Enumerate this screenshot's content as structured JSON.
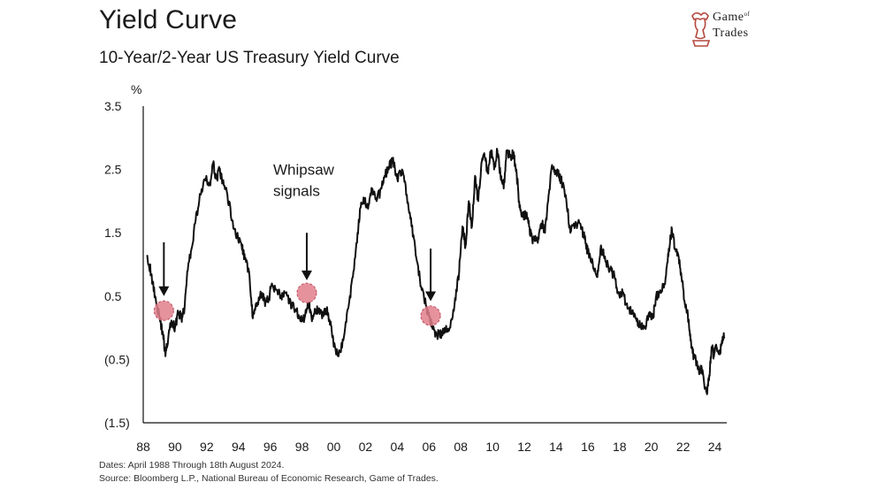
{
  "header": {
    "title": "Yield Curve",
    "subtitle": "10-Year/2-Year US Treasury Yield Curve"
  },
  "logo": {
    "name": "bull-knight-logo-icon",
    "line1": "Game",
    "line1_small": "of",
    "line2": "Trades",
    "color": "#b5483f"
  },
  "footer": {
    "dates": "Dates: April 1988 Through 18th August 2024.",
    "source": "Source: Bloomberg L.P., National Bureau of Economic Research, Game of Trades."
  },
  "chart_data": {
    "type": "line",
    "title": "10-Year/2-Year US Treasury Yield Curve",
    "ylabel": "%",
    "xlabel": "",
    "ylim": [
      -1.5,
      3.5
    ],
    "xlim": [
      1988.0,
      2024.75
    ],
    "yticks": [
      {
        "value": 3.5,
        "label": "3.5"
      },
      {
        "value": 2.5,
        "label": "2.5"
      },
      {
        "value": 1.5,
        "label": "1.5"
      },
      {
        "value": 0.5,
        "label": "0.5"
      },
      {
        "value": -0.5,
        "label": "(0.5)"
      },
      {
        "value": -1.5,
        "label": "(1.5)"
      }
    ],
    "xticks": [
      {
        "value": 1988,
        "label": "88"
      },
      {
        "value": 1990,
        "label": "90"
      },
      {
        "value": 1992,
        "label": "92"
      },
      {
        "value": 1994,
        "label": "94"
      },
      {
        "value": 1996,
        "label": "96"
      },
      {
        "value": 1998,
        "label": "98"
      },
      {
        "value": 2000,
        "label": "00"
      },
      {
        "value": 2002,
        "label": "02"
      },
      {
        "value": 2004,
        "label": "04"
      },
      {
        "value": 2006,
        "label": "06"
      },
      {
        "value": 2008,
        "label": "08"
      },
      {
        "value": 2010,
        "label": "10"
      },
      {
        "value": 2012,
        "label": "12"
      },
      {
        "value": 2014,
        "label": "14"
      },
      {
        "value": 2016,
        "label": "16"
      },
      {
        "value": 2018,
        "label": "18"
      },
      {
        "value": 2020,
        "label": "20"
      },
      {
        "value": 2022,
        "label": "22"
      },
      {
        "value": 2024,
        "label": "24"
      }
    ],
    "grid": false,
    "line_color": "#111111",
    "series": [
      {
        "values": [
          [
            1988.25,
            1.15
          ],
          [
            1988.5,
            0.85
          ],
          [
            1988.75,
            0.5
          ],
          [
            1989.0,
            0.2
          ],
          [
            1989.25,
            -0.1
          ],
          [
            1989.4,
            -0.45
          ],
          [
            1989.6,
            -0.1
          ],
          [
            1989.8,
            0.1
          ],
          [
            1990.0,
            0.0
          ],
          [
            1990.2,
            0.25
          ],
          [
            1990.4,
            0.15
          ],
          [
            1990.6,
            0.3
          ],
          [
            1990.8,
            0.9
          ],
          [
            1991.0,
            1.2
          ],
          [
            1991.3,
            1.7
          ],
          [
            1991.6,
            2.1
          ],
          [
            1991.9,
            2.35
          ],
          [
            1992.2,
            2.25
          ],
          [
            1992.4,
            2.58
          ],
          [
            1992.6,
            2.35
          ],
          [
            1992.8,
            2.48
          ],
          [
            1993.0,
            2.3
          ],
          [
            1993.3,
            2.1
          ],
          [
            1993.6,
            1.7
          ],
          [
            1993.9,
            1.45
          ],
          [
            1994.2,
            1.3
          ],
          [
            1994.4,
            1.1
          ],
          [
            1994.7,
            0.8
          ],
          [
            1994.9,
            0.15
          ],
          [
            1995.2,
            0.4
          ],
          [
            1995.5,
            0.55
          ],
          [
            1995.7,
            0.4
          ],
          [
            1995.9,
            0.45
          ],
          [
            1996.1,
            0.7
          ],
          [
            1996.4,
            0.6
          ],
          [
            1996.7,
            0.5
          ],
          [
            1996.9,
            0.55
          ],
          [
            1997.2,
            0.4
          ],
          [
            1997.5,
            0.3
          ],
          [
            1997.8,
            0.2
          ],
          [
            1998.0,
            0.1
          ],
          [
            1998.2,
            0.2
          ],
          [
            1998.45,
            0.4
          ],
          [
            1998.6,
            0.15
          ],
          [
            1998.8,
            0.3
          ],
          [
            1999.0,
            0.25
          ],
          [
            1999.3,
            0.2
          ],
          [
            1999.5,
            0.3
          ],
          [
            1999.8,
            0.1
          ],
          [
            2000.0,
            -0.3
          ],
          [
            2000.3,
            -0.45
          ],
          [
            2000.6,
            -0.2
          ],
          [
            2000.9,
            0.3
          ],
          [
            2001.2,
            0.8
          ],
          [
            2001.5,
            1.5
          ],
          [
            2001.7,
            1.9
          ],
          [
            2001.9,
            2.0
          ],
          [
            2002.2,
            1.95
          ],
          [
            2002.4,
            2.2
          ],
          [
            2002.7,
            2.0
          ],
          [
            2003.0,
            2.2
          ],
          [
            2003.2,
            2.4
          ],
          [
            2003.5,
            2.55
          ],
          [
            2003.7,
            2.65
          ],
          [
            2004.0,
            2.35
          ],
          [
            2004.3,
            2.5
          ],
          [
            2004.6,
            2.1
          ],
          [
            2004.9,
            1.6
          ],
          [
            2005.2,
            1.1
          ],
          [
            2005.5,
            0.65
          ],
          [
            2005.8,
            0.35
          ],
          [
            2006.0,
            0.2
          ],
          [
            2006.2,
            0.0
          ],
          [
            2006.5,
            -0.1
          ],
          [
            2006.8,
            -0.1
          ],
          [
            2007.0,
            -0.05
          ],
          [
            2007.3,
            0.0
          ],
          [
            2007.6,
            0.35
          ],
          [
            2007.9,
            0.9
          ],
          [
            2008.1,
            1.6
          ],
          [
            2008.3,
            1.3
          ],
          [
            2008.5,
            2.0
          ],
          [
            2008.7,
            1.6
          ],
          [
            2008.9,
            2.4
          ],
          [
            2009.1,
            2.0
          ],
          [
            2009.3,
            2.6
          ],
          [
            2009.5,
            2.7
          ],
          [
            2009.7,
            2.45
          ],
          [
            2009.9,
            2.8
          ],
          [
            2010.1,
            2.5
          ],
          [
            2010.3,
            2.8
          ],
          [
            2010.5,
            2.4
          ],
          [
            2010.7,
            2.2
          ],
          [
            2010.9,
            2.8
          ],
          [
            2011.1,
            2.7
          ],
          [
            2011.3,
            2.75
          ],
          [
            2011.5,
            2.5
          ],
          [
            2011.7,
            1.9
          ],
          [
            2011.9,
            1.75
          ],
          [
            2012.1,
            1.8
          ],
          [
            2012.3,
            1.6
          ],
          [
            2012.5,
            1.4
          ],
          [
            2012.7,
            1.45
          ],
          [
            2012.9,
            1.4
          ],
          [
            2013.1,
            1.65
          ],
          [
            2013.3,
            1.5
          ],
          [
            2013.5,
            2.0
          ],
          [
            2013.7,
            2.5
          ],
          [
            2013.9,
            2.5
          ],
          [
            2014.1,
            2.45
          ],
          [
            2014.3,
            2.35
          ],
          [
            2014.6,
            2.1
          ],
          [
            2014.9,
            1.5
          ],
          [
            2015.2,
            1.65
          ],
          [
            2015.5,
            1.65
          ],
          [
            2015.8,
            1.4
          ],
          [
            2016.0,
            1.2
          ],
          [
            2016.3,
            1.05
          ],
          [
            2016.6,
            0.8
          ],
          [
            2016.8,
            1.25
          ],
          [
            2017.0,
            1.15
          ],
          [
            2017.3,
            0.95
          ],
          [
            2017.6,
            0.85
          ],
          [
            2017.9,
            0.55
          ],
          [
            2018.2,
            0.55
          ],
          [
            2018.5,
            0.3
          ],
          [
            2018.8,
            0.25
          ],
          [
            2019.0,
            0.15
          ],
          [
            2019.3,
            0.05
          ],
          [
            2019.6,
            0.0
          ],
          [
            2019.9,
            0.25
          ],
          [
            2020.1,
            0.15
          ],
          [
            2020.3,
            0.5
          ],
          [
            2020.6,
            0.55
          ],
          [
            2020.9,
            0.8
          ],
          [
            2021.1,
            1.25
          ],
          [
            2021.3,
            1.55
          ],
          [
            2021.5,
            1.25
          ],
          [
            2021.7,
            1.15
          ],
          [
            2021.9,
            0.8
          ],
          [
            2022.1,
            0.4
          ],
          [
            2022.3,
            0.2
          ],
          [
            2022.45,
            -0.1
          ],
          [
            2022.6,
            -0.4
          ],
          [
            2022.8,
            -0.5
          ],
          [
            2023.0,
            -0.7
          ],
          [
            2023.15,
            -0.6
          ],
          [
            2023.35,
            -0.95
          ],
          [
            2023.5,
            -1.05
          ],
          [
            2023.65,
            -0.75
          ],
          [
            2023.8,
            -0.3
          ],
          [
            2023.95,
            -0.45
          ],
          [
            2024.1,
            -0.3
          ],
          [
            2024.3,
            -0.4
          ],
          [
            2024.45,
            -0.2
          ],
          [
            2024.6,
            -0.15
          ]
        ]
      }
    ],
    "markers": [
      {
        "x": 1989.3,
        "y": 0.27,
        "color": "#e07f8c"
      },
      {
        "x": 1998.3,
        "y": 0.55,
        "color": "#e07f8c"
      },
      {
        "x": 2006.1,
        "y": 0.19,
        "color": "#e07f8c"
      }
    ],
    "arrows": [
      {
        "x": 1989.3,
        "y_from": 1.35,
        "y_to": 0.5
      },
      {
        "x": 1998.3,
        "y_from": 1.5,
        "y_to": 0.75
      },
      {
        "x": 2006.1,
        "y_from": 1.25,
        "y_to": 0.42
      }
    ],
    "annotation": {
      "line1": "Whipsaw",
      "line2": "signals",
      "x": 1998.3,
      "y": 2.25
    }
  }
}
